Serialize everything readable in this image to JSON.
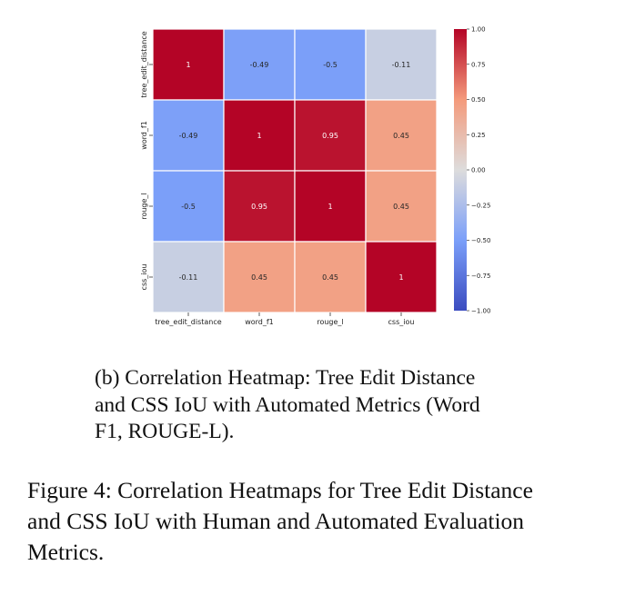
{
  "chart_data": {
    "type": "heatmap",
    "row_labels": [
      "tree_edit_distance",
      "word_f1",
      "rouge_l",
      "css_iou"
    ],
    "col_labels": [
      "tree_edit_distance",
      "word_f1",
      "rouge_l",
      "css_iou"
    ],
    "values": [
      [
        1,
        -0.49,
        -0.5,
        -0.11
      ],
      [
        -0.49,
        1,
        0.95,
        0.45
      ],
      [
        -0.5,
        0.95,
        1,
        0.45
      ],
      [
        -0.11,
        0.45,
        0.45,
        1
      ]
    ],
    "cell_text": [
      [
        "1",
        "-0.49",
        "-0.5",
        "-0.11"
      ],
      [
        "-0.49",
        "1",
        "0.95",
        "0.45"
      ],
      [
        "-0.5",
        "0.95",
        "1",
        "0.45"
      ],
      [
        "-0.11",
        "0.45",
        "0.45",
        "1"
      ]
    ],
    "colormap": "coolwarm",
    "vmin": -1.0,
    "vmax": 1.0,
    "colorbar_ticks": [
      "1.00",
      "0.75",
      "0.50",
      "0.25",
      "0.00",
      "−0.25",
      "−0.50",
      "−0.75",
      "−1.00"
    ],
    "colorbar_tick_values": [
      1.0,
      0.75,
      0.5,
      0.25,
      0.0,
      -0.25,
      -0.5,
      -0.75,
      -1.0
    ]
  },
  "subcaption": "(b) Correlation Heatmap:  Tree Edit Distance\nand CSS IoU with Automated Metrics (Word\nF1, ROUGE-L).",
  "caption": "Figure 4: Correlation Heatmaps for Tree Edit Distance\nand CSS IoU with Human and Automated Evaluation\nMetrics."
}
